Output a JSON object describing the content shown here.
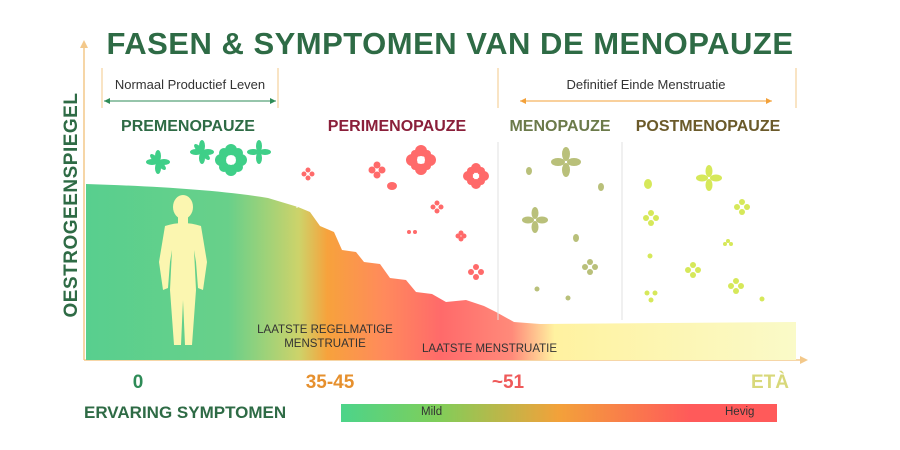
{
  "title": "FASEN & SYMPTOMEN VAN DE MENOPAUZE",
  "y_axis_label": "OESTROGEENSPIEGEL",
  "brackets": [
    {
      "label": "Normaal Productief Leven"
    },
    {
      "label": "Definitief Einde Menstruatie"
    }
  ],
  "phases": [
    {
      "label": "PREMENOPAUZE",
      "color": "#2e6b45"
    },
    {
      "label": "PERIMENOPAUZE",
      "color": "#8a1f3a"
    },
    {
      "label": "MENOPAUZE",
      "color": "#6b7a4a"
    },
    {
      "label": "POSTMENOPAUZE",
      "color": "#6b5a2a"
    }
  ],
  "x_ticks": [
    {
      "label": "0",
      "color": "#2e8b57"
    },
    {
      "label": "35-45",
      "color": "#e6902e"
    },
    {
      "label": "~51",
      "color": "#ef5a5a"
    },
    {
      "label": "ETÀ",
      "color": "#d8d87a"
    }
  ],
  "notes": {
    "last_regular": "LAATSTE REGELMATIGE MENSTRUATIE",
    "last_period": "LAATSTE MENSTRUATIE"
  },
  "symptoms": {
    "label": "ERVARING SYMPTOMEN",
    "mild": "Mild",
    "severe": "Hevig"
  },
  "colors": {
    "premenopause": "#58cf8e",
    "perimenopause_start": "#f7a23c",
    "perimenopause": "#ff6a6a",
    "menopause": "#fff2a0",
    "postmenopause": "#fafac8",
    "axis": "#f3c88a",
    "title": "#2e6b45"
  },
  "icons": [
    "figure-icon",
    "flower-icon"
  ]
}
